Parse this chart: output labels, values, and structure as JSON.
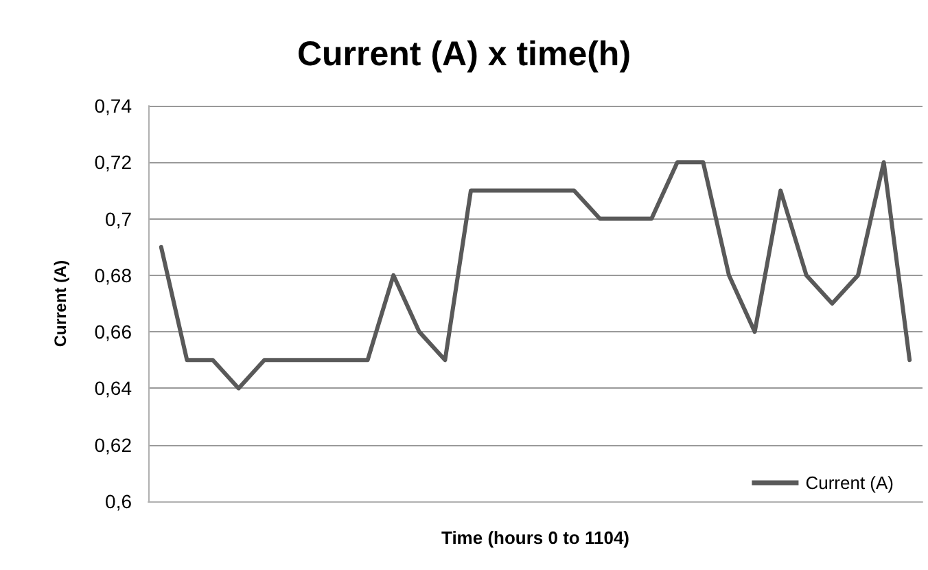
{
  "chart_data": {
    "type": "line",
    "title": "Current (A) x time(h)",
    "xlabel": "Time (hours 0 to 1104)",
    "ylabel": "Current (A)",
    "categories": [
      null,
      null,
      null,
      null,
      null,
      null,
      null,
      null,
      null,
      null,
      null,
      null,
      null,
      null,
      null,
      null,
      null,
      null,
      null,
      null,
      null,
      null,
      null,
      null,
      null,
      null,
      null,
      null,
      null,
      null
    ],
    "series": [
      {
        "name": "Current (A)",
        "color": "#595959",
        "values": [
          0.69,
          0.65,
          0.65,
          0.64,
          0.65,
          0.65,
          0.65,
          0.65,
          0.65,
          0.68,
          0.66,
          0.65,
          0.71,
          0.71,
          0.71,
          0.71,
          0.71,
          0.7,
          0.7,
          0.7,
          0.72,
          0.72,
          0.68,
          0.66,
          0.71,
          0.68,
          0.67,
          0.68,
          0.72,
          0.65
        ]
      }
    ],
    "ylim": [
      0.6,
      0.74
    ],
    "yticks": [
      {
        "value": 0.6,
        "label": "0,6"
      },
      {
        "value": 0.62,
        "label": "0,62"
      },
      {
        "value": 0.64,
        "label": "0,64"
      },
      {
        "value": 0.66,
        "label": "0,66"
      },
      {
        "value": 0.68,
        "label": "0,68"
      },
      {
        "value": 0.7,
        "label": "0,7"
      },
      {
        "value": 0.72,
        "label": "0,72"
      },
      {
        "value": 0.74,
        "label": "0,74"
      }
    ],
    "grid": "y",
    "legend": "bottom right",
    "marker": "none",
    "line_style": "solid"
  }
}
